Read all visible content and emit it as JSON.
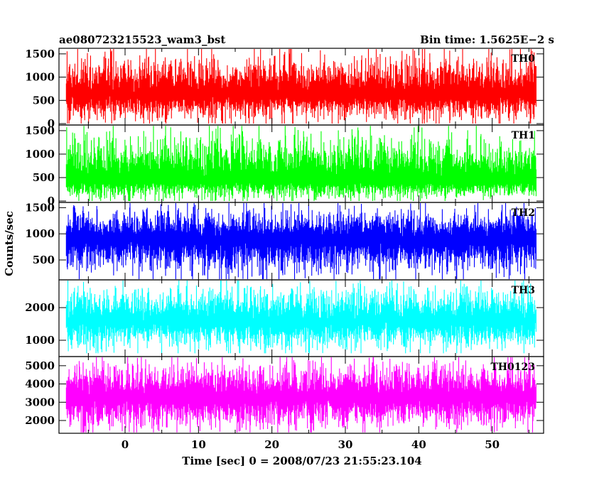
{
  "chart_data": {
    "type": "line",
    "title_left": "ae080723215523_wam3_bst",
    "title_right": "Bin time: 1.5625E−2 s",
    "xlabel": "Time [sec] 0 = 2008/07/23 21:55:23.104",
    "ylabel": "Counts/sec",
    "xlim": [
      -9,
      57
    ],
    "data_xrange": [
      -8,
      56
    ],
    "x_ticks": [
      0,
      10,
      20,
      30,
      40,
      50
    ],
    "x_tick_labels": [
      "0",
      "10",
      "20",
      "30",
      "40",
      "50"
    ],
    "panels": [
      {
        "name": "TH0",
        "color": "#ff0000",
        "ylim": [
          -30,
          1620
        ],
        "y_ticks": [
          0,
          500,
          1000,
          1500
        ],
        "y_tick_labels": [
          "0",
          "500",
          "1000",
          "1500"
        ],
        "mean": 620,
        "min": 0,
        "max": 1620
      },
      {
        "name": "TH1",
        "color": "#00ff00",
        "ylim": [
          -30,
          1620
        ],
        "y_ticks": [
          0,
          500,
          1000,
          1500
        ],
        "y_tick_labels": [
          "0",
          "500",
          "1000",
          "1500"
        ],
        "mean": 420,
        "min": 0,
        "max": 1600
      },
      {
        "name": "TH2",
        "color": "#0000ff",
        "ylim": [
          120,
          1600
        ],
        "y_ticks": [
          500,
          1000,
          1500
        ],
        "y_tick_labels": [
          "500",
          "1000",
          "1500"
        ],
        "mean": 900,
        "min": 130,
        "max": 1600
      },
      {
        "name": "TH3",
        "color": "#00ffff",
        "ylim": [
          500,
          2850
        ],
        "y_ticks": [
          1000,
          2000
        ],
        "y_tick_labels": [
          "1000",
          "2000"
        ],
        "mean": 1570,
        "min": 600,
        "max": 2850
      },
      {
        "name": "TH0123",
        "color": "#ff00ff",
        "ylim": [
          1300,
          5500
        ],
        "y_ticks": [
          2000,
          3000,
          4000,
          5000
        ],
        "y_tick_labels": [
          "2000",
          "3000",
          "4000",
          "5000"
        ],
        "mean": 3250,
        "min": 1350,
        "max": 5500
      }
    ],
    "grid": false
  }
}
